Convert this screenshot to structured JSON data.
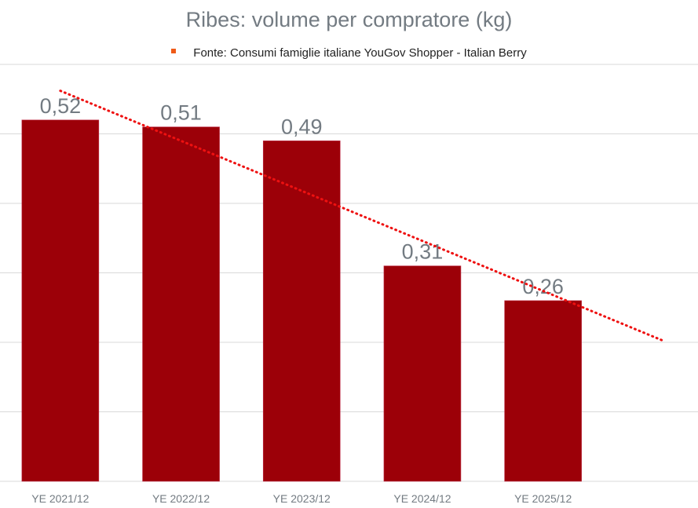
{
  "chart_data": {
    "type": "bar",
    "title": "Ribes: volume per compratore (kg)",
    "legend": [
      "Fonte: Consumi famiglie italiane YouGov Shopper - Italian Berry"
    ],
    "legend_placement": "top",
    "categories": [
      "YE 2021/12",
      "YE 2022/12",
      "YE 2023/12",
      "YE 2024/12",
      "YE 2025/12"
    ],
    "values": [
      0.52,
      0.51,
      0.49,
      0.31,
      0.26
    ],
    "data_labels": [
      "0,52",
      "0,51",
      "0,49",
      "0,31",
      "0,26"
    ],
    "ylim": [
      0,
      0.6
    ],
    "ytick_step": 0.1,
    "grid": true,
    "trendline": {
      "type": "linear",
      "forward_periods": 1,
      "style": "dotted"
    },
    "colors": {
      "bar": "#9c0008",
      "trend": "#ee1111",
      "legend_marker": "#ef5a18",
      "grid": "#d9d9d9",
      "text": "#737b82"
    }
  }
}
